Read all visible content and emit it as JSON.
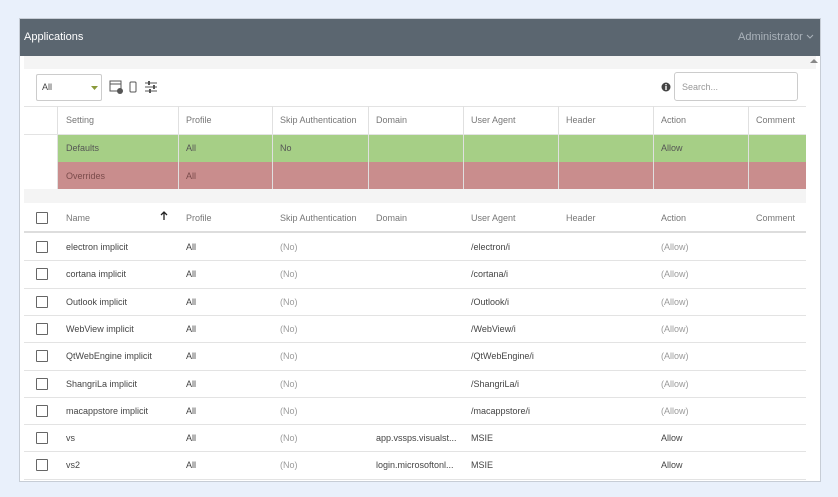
{
  "header": {
    "title": "Applications",
    "user": "Administrator"
  },
  "toolbar": {
    "filter": "All",
    "search_placeholder": "Search..."
  },
  "settings_table": {
    "columns": [
      "Setting",
      "Profile",
      "Skip Authentication",
      "Domain",
      "User Agent",
      "Header",
      "Action",
      "Comment"
    ],
    "rows": [
      [
        "Defaults",
        "All",
        "No",
        null,
        null,
        null,
        "Allow",
        null
      ],
      [
        "Overrides",
        "All",
        null,
        null,
        null,
        null,
        null,
        null
      ]
    ]
  },
  "apps_table": {
    "columns": [
      "Name",
      "Profile",
      "Skip Authentication",
      "Domain",
      "User Agent",
      "Header",
      "Action",
      "Comment"
    ],
    "rows": [
      [
        "electron implicit",
        "All",
        "(No)",
        null,
        "/electron/i",
        null,
        "(Allow)",
        null
      ],
      [
        "cortana implicit",
        "All",
        "(No)",
        null,
        "/cortana/i",
        null,
        "(Allow)",
        null
      ],
      [
        "Outlook implicit",
        "All",
        "(No)",
        null,
        "/Outlook/i",
        null,
        "(Allow)",
        null
      ],
      [
        "WebView implicit",
        "All",
        "(No)",
        null,
        "/WebView/i",
        null,
        "(Allow)",
        null
      ],
      [
        "QtWebEngine implicit",
        "All",
        "(No)",
        null,
        "/QtWebEngine/i",
        null,
        "(Allow)",
        null
      ],
      [
        "ShangriLa implicit",
        "All",
        "(No)",
        null,
        "/ShangriLa/i",
        null,
        "(Allow)",
        null
      ],
      [
        "macappstore implicit",
        "All",
        "(No)",
        null,
        "/macappstore/i",
        null,
        "(Allow)",
        null
      ],
      [
        "vs",
        "All",
        "(No)",
        "app.vssps.visualst...",
        "MSIE",
        null,
        "Allow",
        null
      ],
      [
        "vs2",
        "All",
        "(No)",
        "login.microsoftonl...",
        "MSIE",
        null,
        "Allow",
        null
      ]
    ]
  }
}
